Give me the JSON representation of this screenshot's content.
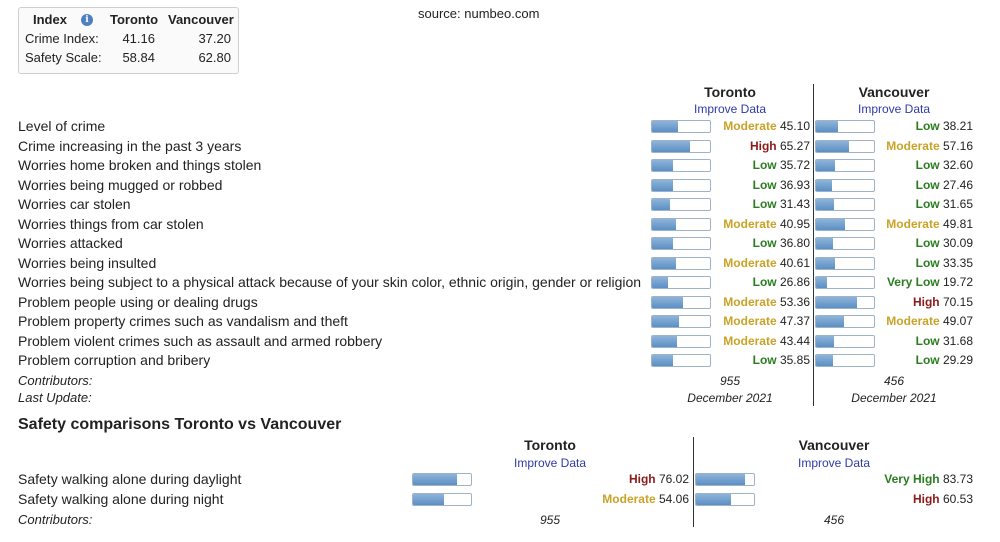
{
  "index_box": {
    "header_index": "Index",
    "header_city1": "Toronto",
    "header_city2": "Vancouver",
    "rows": [
      {
        "label": "Crime Index:",
        "v1": "41.16",
        "v2": "37.20"
      },
      {
        "label": "Safety Scale:",
        "v1": "58.84",
        "v2": "62.80"
      }
    ]
  },
  "source": "source: numbeo.com",
  "crime": {
    "city1": "Toronto",
    "city2": "Vancouver",
    "improve_label": "Improve Data",
    "contributors_label": "Contributors:",
    "last_update_label": "Last Update:",
    "contributors1": "955",
    "contributors2": "456",
    "last_update1": "December 2021",
    "last_update2": "December 2021"
  },
  "safety": {
    "title": "Safety comparisons Toronto vs Vancouver",
    "city1": "Toronto",
    "city2": "Vancouver",
    "improve_label": "Improve Data",
    "contributors_label": "Contributors:",
    "contributors1": "955",
    "contributors2": "456"
  },
  "colors": {
    "low": "#2a7d1f",
    "moderate": "#c9a227",
    "high": "#8b1a1a",
    "bar_fill": "#5b8fc4"
  },
  "chart_data": [
    {
      "type": "bar",
      "categories": [
        "Level of crime",
        "Crime increasing in the past 3 years",
        "Worries home broken and things stolen",
        "Worries being mugged or robbed",
        "Worries car stolen",
        "Worries things from car stolen",
        "Worries attacked",
        "Worries being insulted",
        "Worries being subject to a physical attack because of your skin color, ethnic origin, gender or religion",
        "Problem people using or dealing drugs",
        "Problem property crimes such as vandalism and theft",
        "Problem violent crimes such as assault and armed robbery",
        "Problem corruption and bribery"
      ],
      "ylim": [
        0,
        100
      ],
      "series": [
        {
          "name": "Toronto",
          "values": [
            45.1,
            65.27,
            35.72,
            36.93,
            31.43,
            40.95,
            36.8,
            40.61,
            26.86,
            53.36,
            47.37,
            43.44,
            35.85
          ],
          "levels": [
            "Moderate",
            "High",
            "Low",
            "Low",
            "Low",
            "Moderate",
            "Low",
            "Moderate",
            "Low",
            "Moderate",
            "Moderate",
            "Moderate",
            "Low"
          ]
        },
        {
          "name": "Vancouver",
          "values": [
            38.21,
            57.16,
            32.6,
            27.46,
            31.65,
            49.81,
            30.09,
            33.35,
            19.72,
            70.15,
            49.07,
            31.68,
            29.29
          ],
          "levels": [
            "Low",
            "Moderate",
            "Low",
            "Low",
            "Low",
            "Moderate",
            "Low",
            "Low",
            "Very Low",
            "High",
            "Moderate",
            "Low",
            "Low"
          ]
        }
      ]
    },
    {
      "type": "bar",
      "categories": [
        "Safety walking alone during daylight",
        "Safety walking alone during night"
      ],
      "ylim": [
        0,
        100
      ],
      "series": [
        {
          "name": "Toronto",
          "values": [
            76.02,
            54.06
          ],
          "levels": [
            "High",
            "Moderate"
          ]
        },
        {
          "name": "Vancouver",
          "values": [
            83.73,
            60.53
          ],
          "levels": [
            "Very High",
            "High"
          ]
        }
      ]
    }
  ]
}
